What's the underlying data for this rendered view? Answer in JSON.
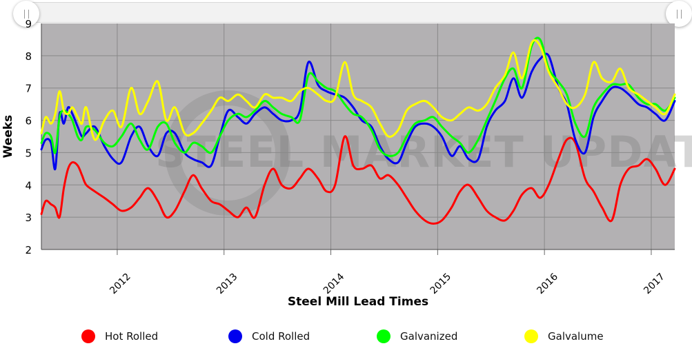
{
  "navigator": {
    "handle_left": "left-handle",
    "handle_right": "right-handle"
  },
  "watermark": "STEEL MARKET UPDATE",
  "colors": {
    "plot_bg": "#b3b1b3",
    "hot": "#ff0000",
    "cold": "#0000ee",
    "galv": "#00ff00",
    "galvalume": "#ffff00"
  },
  "chart_data": {
    "type": "line",
    "title": "",
    "xlabel": "Steel Mill Lead Times",
    "ylabel": "Weeks",
    "ylim": [
      2,
      9
    ],
    "yticks": [
      2,
      3,
      4,
      5,
      6,
      7,
      8,
      9
    ],
    "xlim": [
      2011.29,
      2017.22
    ],
    "xticks": [
      "2012",
      "2013",
      "2014",
      "2015",
      "2016",
      "2017"
    ],
    "grid": true,
    "legend_position": "bottom",
    "series": [
      {
        "name": "Hot Rolled",
        "color": "#ff0000",
        "x": [
          2011.29,
          2011.33,
          2011.38,
          2011.42,
          2011.46,
          2011.5,
          2011.54,
          2011.58,
          2011.63,
          2011.67,
          2011.71,
          2011.79,
          2011.88,
          2011.96,
          2012.04,
          2012.13,
          2012.21,
          2012.29,
          2012.38,
          2012.46,
          2012.54,
          2012.63,
          2012.71,
          2012.79,
          2012.88,
          2012.96,
          2013.04,
          2013.13,
          2013.21,
          2013.29,
          2013.38,
          2013.46,
          2013.54,
          2013.63,
          2013.71,
          2013.79,
          2013.88,
          2013.96,
          2014.04,
          2014.13,
          2014.21,
          2014.29,
          2014.38,
          2014.46,
          2014.54,
          2014.63,
          2014.71,
          2014.79,
          2014.88,
          2014.96,
          2015.04,
          2015.13,
          2015.21,
          2015.29,
          2015.38,
          2015.46,
          2015.54,
          2015.63,
          2015.71,
          2015.79,
          2015.88,
          2015.96,
          2016.04,
          2016.13,
          2016.21,
          2016.29,
          2016.38,
          2016.46,
          2016.54,
          2016.63,
          2016.71,
          2016.79,
          2016.88,
          2016.96,
          2017.04,
          2017.13,
          2017.22
        ],
        "y": [
          3.1,
          3.5,
          3.4,
          3.3,
          3.0,
          3.9,
          4.5,
          4.7,
          4.6,
          4.3,
          4.0,
          3.8,
          3.6,
          3.4,
          3.2,
          3.3,
          3.6,
          3.9,
          3.5,
          3.0,
          3.2,
          3.8,
          4.3,
          3.9,
          3.5,
          3.4,
          3.2,
          3.0,
          3.3,
          3.0,
          4.0,
          4.5,
          4.0,
          3.9,
          4.2,
          4.5,
          4.2,
          3.8,
          4.0,
          5.5,
          4.6,
          4.5,
          4.6,
          4.2,
          4.3,
          4.0,
          3.6,
          3.2,
          2.9,
          2.8,
          2.9,
          3.3,
          3.8,
          4.0,
          3.6,
          3.2,
          3.0,
          2.9,
          3.2,
          3.7,
          3.9,
          3.6,
          4.0,
          4.8,
          5.4,
          5.3,
          4.2,
          3.8,
          3.3,
          2.9,
          4.0,
          4.5,
          4.6,
          4.8,
          4.5,
          4.0,
          4.5
        ]
      },
      {
        "name": "Cold Rolled",
        "color": "#0000ee",
        "x": [
          2011.29,
          2011.33,
          2011.38,
          2011.42,
          2011.46,
          2011.5,
          2011.54,
          2011.58,
          2011.63,
          2011.67,
          2011.71,
          2011.79,
          2011.88,
          2011.96,
          2012.04,
          2012.13,
          2012.21,
          2012.29,
          2012.38,
          2012.46,
          2012.54,
          2012.63,
          2012.71,
          2012.79,
          2012.88,
          2012.96,
          2013.04,
          2013.13,
          2013.21,
          2013.29,
          2013.38,
          2013.46,
          2013.54,
          2013.63,
          2013.71,
          2013.79,
          2013.88,
          2013.96,
          2014.04,
          2014.13,
          2014.21,
          2014.29,
          2014.38,
          2014.46,
          2014.54,
          2014.63,
          2014.71,
          2014.79,
          2014.88,
          2014.96,
          2015.04,
          2015.13,
          2015.21,
          2015.29,
          2015.38,
          2015.46,
          2015.54,
          2015.63,
          2015.71,
          2015.79,
          2015.88,
          2015.96,
          2016.04,
          2016.13,
          2016.21,
          2016.29,
          2016.38,
          2016.46,
          2016.54,
          2016.63,
          2016.71,
          2016.79,
          2016.88,
          2016.96,
          2017.04,
          2017.13,
          2017.22
        ],
        "y": [
          5.1,
          5.4,
          5.3,
          4.5,
          6.2,
          5.9,
          6.4,
          6.2,
          5.8,
          5.5,
          5.6,
          5.8,
          5.2,
          4.8,
          4.7,
          5.5,
          5.8,
          5.2,
          4.9,
          5.6,
          5.6,
          5.0,
          4.8,
          4.7,
          4.6,
          5.5,
          6.3,
          6.1,
          5.9,
          6.2,
          6.4,
          6.2,
          6.0,
          6.0,
          6.3,
          7.8,
          7.1,
          6.9,
          6.8,
          6.7,
          6.4,
          6.0,
          5.8,
          5.2,
          4.8,
          4.7,
          5.3,
          5.8,
          5.9,
          5.8,
          5.5,
          4.9,
          5.2,
          4.8,
          4.8,
          5.8,
          6.3,
          6.6,
          7.3,
          6.7,
          7.5,
          7.9,
          8.0,
          7.0,
          6.5,
          5.4,
          5.0,
          6.1,
          6.6,
          7.0,
          7.0,
          6.8,
          6.5,
          6.4,
          6.2,
          6.0,
          6.6
        ]
      },
      {
        "name": "Galvanized",
        "color": "#00ff00",
        "x": [
          2011.29,
          2011.33,
          2011.38,
          2011.42,
          2011.46,
          2011.5,
          2011.54,
          2011.58,
          2011.63,
          2011.67,
          2011.71,
          2011.79,
          2011.88,
          2011.96,
          2012.04,
          2012.13,
          2012.21,
          2012.29,
          2012.38,
          2012.46,
          2012.54,
          2012.63,
          2012.71,
          2012.79,
          2012.88,
          2012.96,
          2013.04,
          2013.13,
          2013.21,
          2013.29,
          2013.38,
          2013.46,
          2013.54,
          2013.63,
          2013.71,
          2013.79,
          2013.88,
          2013.96,
          2014.04,
          2014.13,
          2014.21,
          2014.29,
          2014.38,
          2014.46,
          2014.54,
          2014.63,
          2014.71,
          2014.79,
          2014.88,
          2014.96,
          2015.04,
          2015.13,
          2015.21,
          2015.29,
          2015.38,
          2015.46,
          2015.54,
          2015.63,
          2015.71,
          2015.79,
          2015.88,
          2015.96,
          2016.04,
          2016.13,
          2016.21,
          2016.29,
          2016.38,
          2016.46,
          2016.54,
          2016.63,
          2016.71,
          2016.79,
          2016.88,
          2016.96,
          2017.04,
          2017.13,
          2017.22
        ],
        "y": [
          5.3,
          5.6,
          5.5,
          5.0,
          6.1,
          6.3,
          6.2,
          6.0,
          5.5,
          5.4,
          5.8,
          5.7,
          5.3,
          5.2,
          5.5,
          5.9,
          5.4,
          5.1,
          5.8,
          5.9,
          5.3,
          5.0,
          5.3,
          5.2,
          5.0,
          5.5,
          6.0,
          6.2,
          6.1,
          6.3,
          6.6,
          6.4,
          6.2,
          6.1,
          6.0,
          7.4,
          7.2,
          7.0,
          6.9,
          6.5,
          6.2,
          6.1,
          5.7,
          5.1,
          4.9,
          5.0,
          5.5,
          5.9,
          6.0,
          6.1,
          5.8,
          5.5,
          5.3,
          5.0,
          5.4,
          6.0,
          6.6,
          7.3,
          7.6,
          7.0,
          8.3,
          8.5,
          7.6,
          7.2,
          6.8,
          5.9,
          5.5,
          6.4,
          6.8,
          7.1,
          7.1,
          7.1,
          6.7,
          6.5,
          6.5,
          6.3,
          6.7
        ]
      },
      {
        "name": "Galvalume",
        "color": "#ffff00",
        "x": [
          2011.29,
          2011.33,
          2011.38,
          2011.42,
          2011.46,
          2011.5,
          2011.54,
          2011.58,
          2011.63,
          2011.67,
          2011.71,
          2011.79,
          2011.88,
          2011.96,
          2012.04,
          2012.13,
          2012.21,
          2012.29,
          2012.38,
          2012.46,
          2012.54,
          2012.63,
          2012.71,
          2012.79,
          2012.88,
          2012.96,
          2013.04,
          2013.13,
          2013.21,
          2013.29,
          2013.38,
          2013.46,
          2013.54,
          2013.63,
          2013.71,
          2013.79,
          2013.88,
          2013.96,
          2014.04,
          2014.13,
          2014.21,
          2014.29,
          2014.38,
          2014.46,
          2014.54,
          2014.63,
          2014.71,
          2014.79,
          2014.88,
          2014.96,
          2015.04,
          2015.13,
          2015.21,
          2015.29,
          2015.38,
          2015.46,
          2015.54,
          2015.63,
          2015.71,
          2015.79,
          2015.88,
          2015.96,
          2016.04,
          2016.13,
          2016.21,
          2016.29,
          2016.38,
          2016.46,
          2016.54,
          2016.63,
          2016.71,
          2016.79,
          2016.88,
          2016.96,
          2017.04,
          2017.13,
          2017.22
        ],
        "y": [
          5.6,
          6.1,
          5.9,
          6.2,
          6.9,
          6.3,
          6.2,
          6.4,
          6.1,
          5.9,
          6.4,
          5.4,
          6.0,
          6.3,
          5.8,
          7.0,
          6.2,
          6.6,
          7.2,
          6.0,
          6.4,
          5.6,
          5.6,
          5.9,
          6.3,
          6.7,
          6.6,
          6.8,
          6.6,
          6.4,
          6.8,
          6.7,
          6.7,
          6.6,
          6.9,
          7.0,
          6.8,
          6.6,
          6.7,
          7.8,
          6.8,
          6.6,
          6.4,
          5.9,
          5.5,
          5.7,
          6.3,
          6.5,
          6.6,
          6.4,
          6.1,
          6.0,
          6.2,
          6.4,
          6.3,
          6.5,
          7.0,
          7.4,
          8.1,
          7.3,
          8.4,
          8.3,
          7.5,
          7.0,
          6.5,
          6.4,
          6.8,
          7.8,
          7.3,
          7.2,
          7.6,
          7.0,
          6.8,
          6.6,
          6.4,
          6.2,
          6.8
        ]
      }
    ]
  }
}
